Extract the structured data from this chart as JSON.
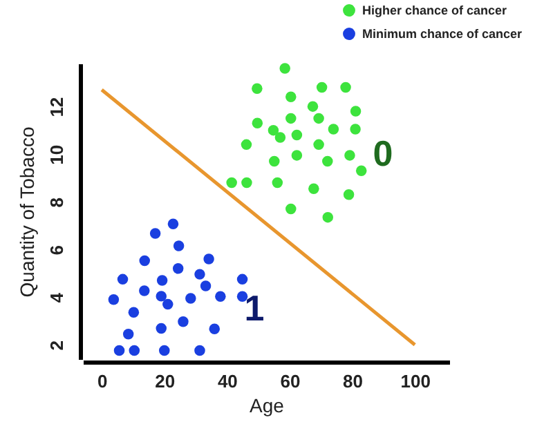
{
  "chart_data": {
    "type": "scatter",
    "xlabel": "Age",
    "ylabel": "Quantity of Tobacco",
    "xlim": [
      -6,
      111
    ],
    "ylim": [
      1.4,
      13.8
    ],
    "xticks": [
      0,
      20,
      40,
      60,
      80,
      100
    ],
    "yticks": [
      2,
      4,
      6,
      8,
      10,
      12
    ],
    "grid": false,
    "legend": "top right",
    "annotations": [
      "0",
      "1"
    ],
    "series": [
      {
        "name": "Higher chance of cancer",
        "color": "#3de33d",
        "marker": "circle",
        "x": [
          58.5,
          49.6,
          60.4,
          70.3,
          77.9,
          67.4,
          81.1,
          49.7,
          54.8,
          60.4,
          69.3,
          57.0,
          62.3,
          74.0,
          81.0,
          46.2,
          69.3,
          55.1,
          62.3,
          72.1,
          79.2,
          82.9,
          41.5,
          46.3,
          56.1,
          67.7,
          78.9,
          60.4,
          72.2
        ],
        "values": [
          13.6,
          12.75,
          12.4,
          12.8,
          12.8,
          12.0,
          11.8,
          11.3,
          11.0,
          11.5,
          11.5,
          10.7,
          10.8,
          11.05,
          11.05,
          10.4,
          10.4,
          9.7,
          9.95,
          9.7,
          9.95,
          9.3,
          8.8,
          8.8,
          8.8,
          8.55,
          8.3,
          7.7,
          7.35
        ]
      },
      {
        "name": "Minimum chance of cancer",
        "color": "#1a3fe0",
        "marker": "circle",
        "x": [
          22.8,
          17.1,
          24.6,
          13.7,
          34.2,
          24.4,
          6.7,
          19.3,
          31.3,
          44.9,
          13.6,
          33.2,
          3.8,
          19.0,
          21.1,
          28.4,
          37.9,
          44.9,
          10.2,
          19.0,
          26.0,
          36.0,
          8.5,
          5.6,
          10.4,
          20.0,
          31.3
        ],
        "values": [
          7.07,
          6.67,
          6.15,
          5.53,
          5.6,
          5.2,
          4.75,
          4.7,
          4.96,
          4.75,
          4.27,
          4.47,
          3.9,
          4.04,
          3.7,
          3.95,
          4.03,
          4.03,
          3.36,
          2.69,
          2.97,
          2.67,
          2.45,
          1.76,
          1.76,
          1.76,
          1.76
        ]
      },
      {
        "type": "line",
        "color": "#e8962e",
        "x": [
          0,
          100
        ],
        "values": [
          12.7,
          2
        ]
      }
    ]
  }
}
